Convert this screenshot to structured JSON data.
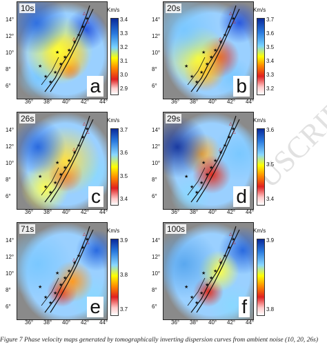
{
  "x_ticks": [
    "36°",
    "38°",
    "40°",
    "42°",
    "44°"
  ],
  "y_ticks": [
    "14°",
    "12°",
    "10°",
    "8°",
    "6°"
  ],
  "colorbar_unit": "Km/s",
  "panels": [
    {
      "period": "10s",
      "letter": "a",
      "cb_ticks": [
        "3.4",
        "3.3",
        "3.2",
        "3.1",
        "3.0",
        "2.9"
      ]
    },
    {
      "period": "20s",
      "letter": "b",
      "cb_ticks": [
        "3.7",
        "3.6",
        "3.5",
        "3.4",
        "3.3",
        "3.2"
      ]
    },
    {
      "period": "26s",
      "letter": "c",
      "cb_ticks": [
        "3.7",
        "3.6",
        "3.5",
        "3.4"
      ]
    },
    {
      "period": "29s",
      "letter": "d",
      "cb_ticks": [
        "3.6",
        "3.5",
        "3.4"
      ]
    },
    {
      "period": "71s",
      "letter": "e",
      "cb_ticks": [
        "3.9",
        "3.8",
        "3.7"
      ]
    },
    {
      "period": "100s",
      "letter": "f",
      "cb_ticks": [
        "3.9",
        "3.8"
      ]
    }
  ],
  "watermark": "USCRIPT",
  "caption": "Figure 7 Phase velocity maps generated by tomographically inverting dispersion curves from ambient noise (10, 20, 26s)"
}
